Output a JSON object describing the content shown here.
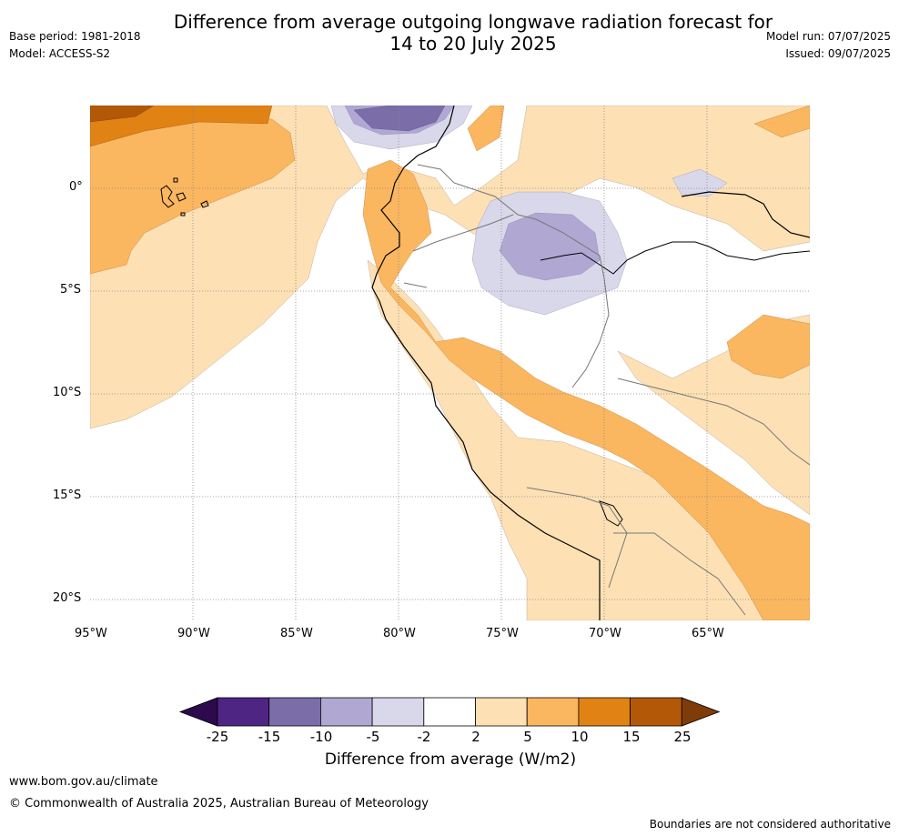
{
  "header": {
    "base_period": "Base period: 1981-2018",
    "model": "Model: ACCESS-S2",
    "title_line1": "Difference from average outgoing longwave radiation forecast for",
    "title_line2": "14 to 20 July 2025",
    "model_run": "Model run: 07/07/2025",
    "issued": "Issued: 09/07/2025"
  },
  "map": {
    "lat_labels": [
      "0°",
      "5°S",
      "10°S",
      "15°S",
      "20°S"
    ],
    "lon_labels": [
      "95°W",
      "90°W",
      "85°W",
      "80°W",
      "75°W",
      "70°W",
      "65°W"
    ]
  },
  "colorbar": {
    "title": "Difference from average (W/m2)",
    "tick_labels": [
      "-25",
      "-15",
      "-10",
      "-5",
      "-2",
      "2",
      "5",
      "10",
      "15",
      "25"
    ],
    "colors": {
      "below_min": "#2d0a4e",
      "bins": [
        "#4f2583",
        "#7b6ea8",
        "#b0a8d2",
        "#d9d8ea",
        "#ffffff",
        "#fde0b4",
        "#fbb660",
        "#e08214",
        "#b35806"
      ],
      "above_max": "#7f3b08"
    }
  },
  "footer": {
    "url": "www.bom.gov.au/climate",
    "copyright": "© Commonwealth of Australia 2025, Australian Bureau of Meteorology",
    "disclaimer": "Boundaries are not considered authoritative"
  }
}
